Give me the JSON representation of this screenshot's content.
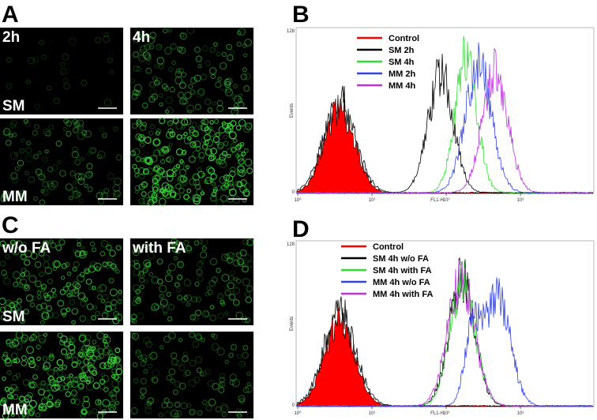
{
  "panel_a": {
    "label": "A",
    "columns": [
      "2h",
      "4h"
    ],
    "rows": [
      "SM",
      "MM"
    ]
  },
  "panel_b": {
    "label": "B",
    "y_label": "Events",
    "x_label": "FL1-H",
    "y_max": "128",
    "y_min": "0",
    "x_ticks": [
      "10⁰",
      "10¹",
      "10²",
      "10³"
    ],
    "legend": [
      {
        "name": "Control",
        "color": "#ff0000"
      },
      {
        "name": "SM 2h",
        "color": "#000000"
      },
      {
        "name": "SM 4h",
        "color": "#33dd33"
      },
      {
        "name": "MM 2h",
        "color": "#3344dd"
      },
      {
        "name": "MM 4h",
        "color": "#bb33dd"
      }
    ]
  },
  "panel_c": {
    "label": "C",
    "columns": [
      "w/o FA",
      "with FA"
    ],
    "rows": [
      "SM",
      "MM"
    ]
  },
  "panel_d": {
    "label": "D",
    "y_label": "Events",
    "x_label": "FL1-H",
    "y_max": "128",
    "y_min": "0",
    "x_ticks": [
      "10⁰",
      "10¹",
      "10²",
      "10³"
    ],
    "legend": [
      {
        "name": "Control",
        "color": "#ff0000"
      },
      {
        "name": "SM 4h w/o FA",
        "color": "#000000"
      },
      {
        "name": "SM 4h with FA",
        "color": "#33dd33"
      },
      {
        "name": "MM 4h w/o FA",
        "color": "#3344dd"
      },
      {
        "name": "MM 4h with FA",
        "color": "#bb33dd"
      }
    ]
  }
}
